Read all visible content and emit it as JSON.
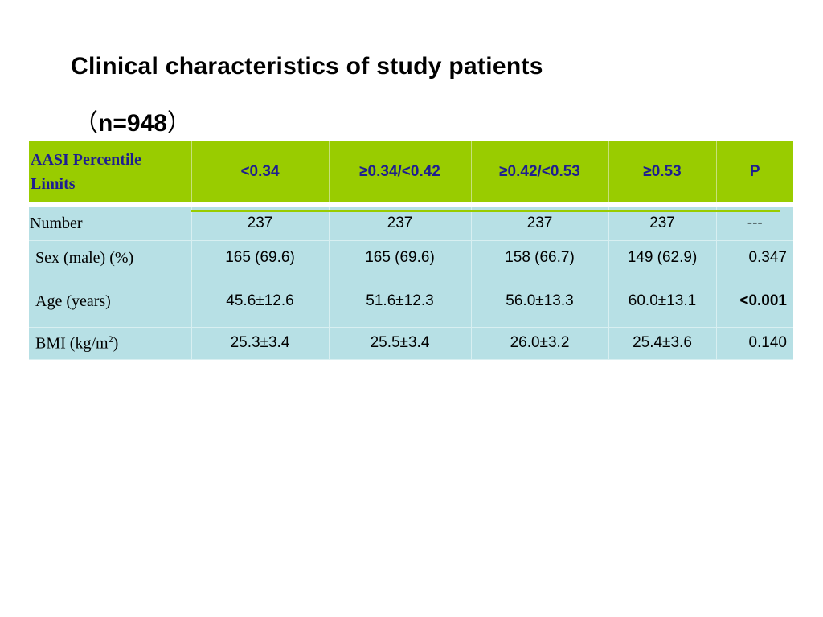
{
  "title": "Clinical characteristics of study patients",
  "subtitle": {
    "open": "（",
    "n": "n=948",
    "close": "）"
  },
  "table": {
    "headers": [
      "AASI Percentile Limits",
      "<0.34",
      "≥0.34/<0.42",
      "≥0.42/<0.53",
      "≥0.53",
      "P"
    ],
    "rows": [
      {
        "label": "Number",
        "values": [
          "237",
          "237",
          "237",
          "237"
        ],
        "p": "---"
      },
      {
        "label": "Sex (male) (%)",
        "values": [
          "165 (69.6)",
          "165 (69.6)",
          "158 (66.7)",
          "149 (62.9)"
        ],
        "p": "0.347"
      },
      {
        "label": "Age (years)",
        "values": [
          "45.6±12.6",
          "51.6±12.3",
          "56.0±13.3",
          "60.0±13.1"
        ],
        "p": "<0.001"
      },
      {
        "label_base": "BMI (kg/m",
        "label_sup": "2",
        "label_end": ")",
        "values": [
          "25.3±3.4",
          "25.5±3.4",
          "26.0±3.2",
          "25.4±3.6"
        ],
        "p": "0.140"
      }
    ]
  },
  "colors": {
    "header_bg": "#99cc00",
    "header_text": "#1f1f8f",
    "row_bg": "#b7e0e5"
  }
}
